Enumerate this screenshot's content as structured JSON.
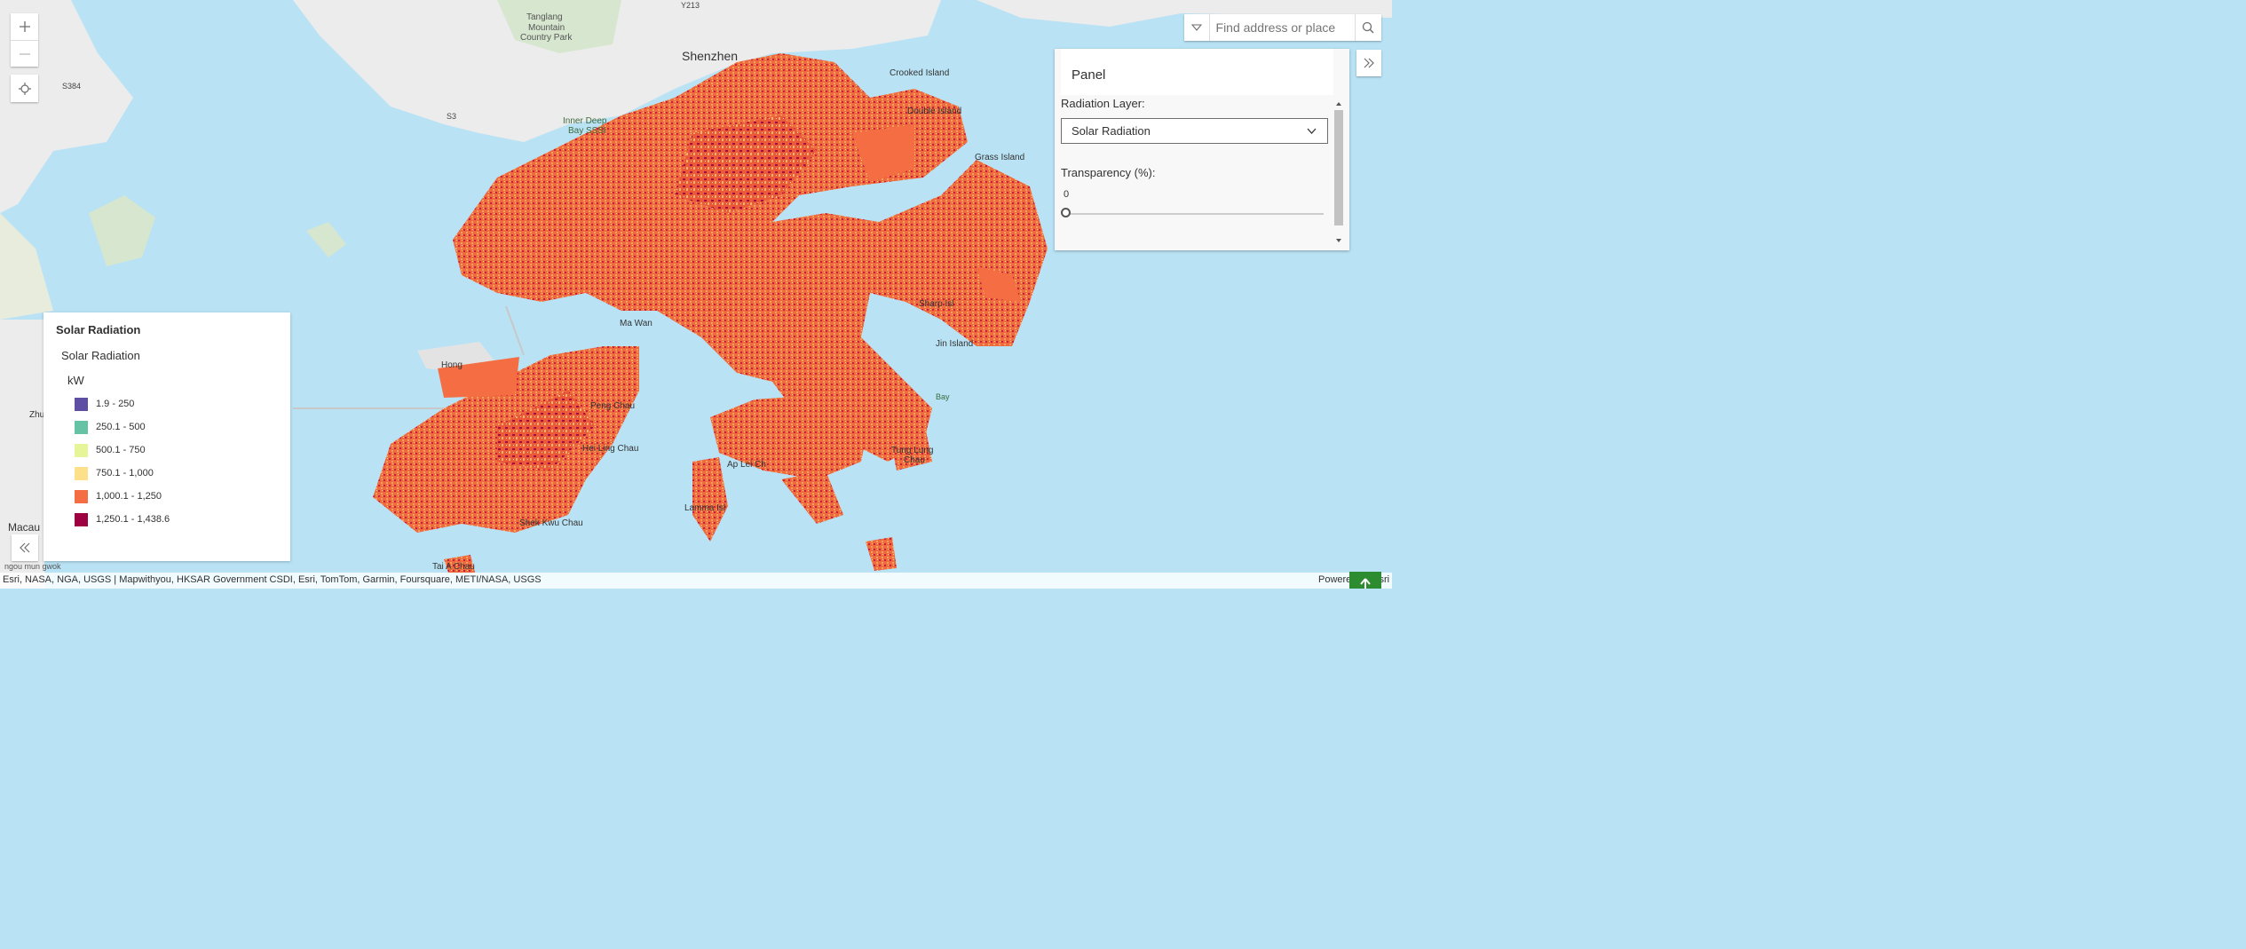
{
  "map": {
    "labels": {
      "shenzhen": "Shenzhen",
      "tanglang": "Tanglang",
      "mountain": "Mountain",
      "country_park": "Country Park",
      "y213": "Y213",
      "s384": "S384",
      "s3": "S3",
      "inner_deep": "Inner Deep",
      "bay_sssi": "Bay SSSI",
      "crooked_island": "Crooked Island",
      "double_island": "Double Island",
      "grass_island": "Grass Island",
      "sharp_island": "Sharp Isl",
      "jin_island": "Jin Island",
      "ma_wan": "Ma Wan",
      "peng_chau": "Peng Chau",
      "hei_ling_chau": "Hei Ling Chau",
      "ap_lei_chau": "Ap Lei Ch",
      "lamma_island": "Lamma Isl",
      "shek_kwu_chau": "Shek Kwu Chau",
      "tung_lung_chau": "Tung Lung",
      "tung_lung_chau2": "Chau",
      "macau": "Macau",
      "zhuhai": "Zhu",
      "hong": "Hong",
      "tai_a_chau": "Tai A Chau",
      "ngou_mun_gwok": "ngou mun gwok",
      "kong": "ng",
      "bay": "Bay"
    }
  },
  "search": {
    "placeholder": "Find address or place"
  },
  "panel": {
    "title": "Panel",
    "radiation_label": "Radiation Layer:",
    "radiation_value": "Solar Radiation",
    "transparency_label": "Transparency (%):",
    "transparency_value": "0"
  },
  "legend": {
    "title": "Solar Radiation",
    "layer_name": "Solar Radiation",
    "unit": "kW",
    "classes": [
      {
        "label": "1.9 - 250",
        "color": "#5e4fa2"
      },
      {
        "label": "250.1 - 500",
        "color": "#66c2a5"
      },
      {
        "label": "500.1 - 750",
        "color": "#e6f598"
      },
      {
        "label": "750.1 - 1,000",
        "color": "#fee08b"
      },
      {
        "label": "1,000.1 - 1,250",
        "color": "#f46d43"
      },
      {
        "label": "1,250.1 - 1,438.6",
        "color": "#9e0142"
      }
    ]
  },
  "attribution": {
    "sources": "Esri, NASA, NGA, USGS | Mapwithyou, HKSAR Government CSDI, Esri, TomTom, Garmin, Foursquare, METI/NASA, USGS",
    "powered": "Powered by Esri"
  },
  "colors": {
    "water": "#b9e3f5",
    "land": "#ececec",
    "green_land": "#d6e6cf",
    "accent": "#2d8c2f"
  }
}
